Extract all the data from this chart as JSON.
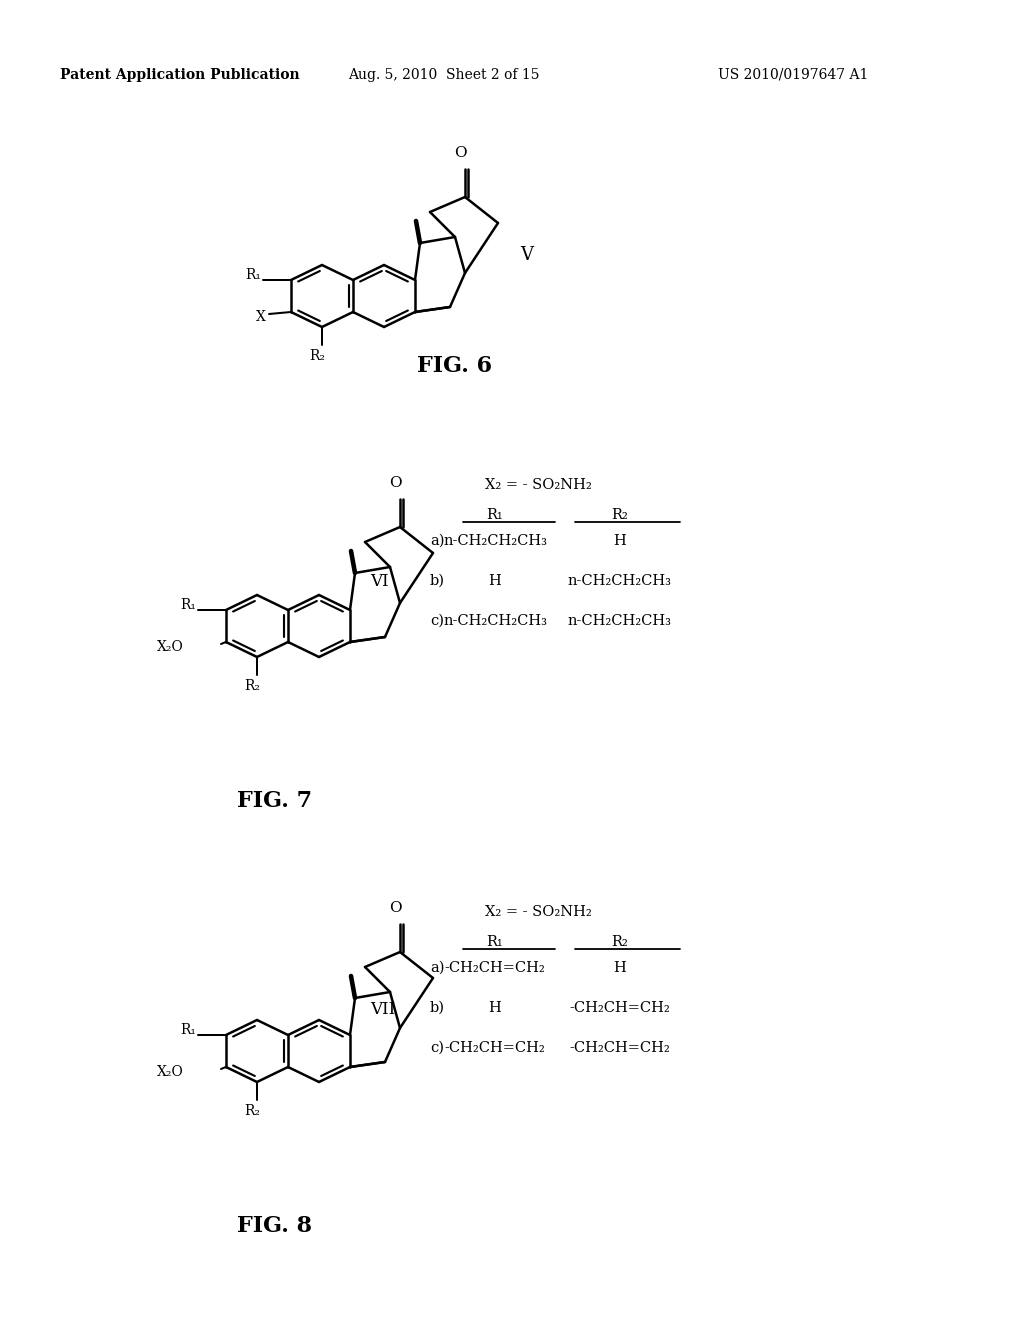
{
  "bg_color": "#ffffff",
  "header_left": "Patent Application Publication",
  "header_mid": "Aug. 5, 2010  Sheet 2 of 15",
  "header_right": "US 2010/0197647 A1",
  "fig6_label": "FIG. 6",
  "fig7_label": "FIG. 7",
  "fig8_label": "FIG. 8",
  "roman6": "V",
  "roman7": "VI",
  "roman8": "VII",
  "fig7_table_header": "X₂ = - SO₂NH₂",
  "fig7_col1": "R₁",
  "fig7_col2": "R₂",
  "fig7_row_a_label": "a)",
  "fig7_row_a_r1": "n-CH₂CH₂CH₃",
  "fig7_row_a_r2": "H",
  "fig7_row_b_label": "b)",
  "fig7_row_b_r1": "H",
  "fig7_row_b_r2": "n-CH₂CH₂CH₃",
  "fig7_row_c_label": "c)",
  "fig7_row_c_r1": "n-CH₂CH₂CH₃",
  "fig7_row_c_r2": "n-CH₂CH₂CH₃",
  "fig8_table_header": "X₂ = - SO₂NH₂",
  "fig8_col1": "R₁",
  "fig8_col2": "R₂",
  "fig8_row_a_label": "a)",
  "fig8_row_a_r1": "-CH₂CH=CH₂",
  "fig8_row_a_r2": "H",
  "fig8_row_b_label": "b)",
  "fig8_row_b_r1": "H",
  "fig8_row_b_r2": "-CH₂CH=CH₂",
  "fig8_row_c_label": "c)",
  "fig8_row_c_r1": "-CH₂CH=CH₂",
  "fig8_row_c_r2": "-CH₂CH=CH₂"
}
